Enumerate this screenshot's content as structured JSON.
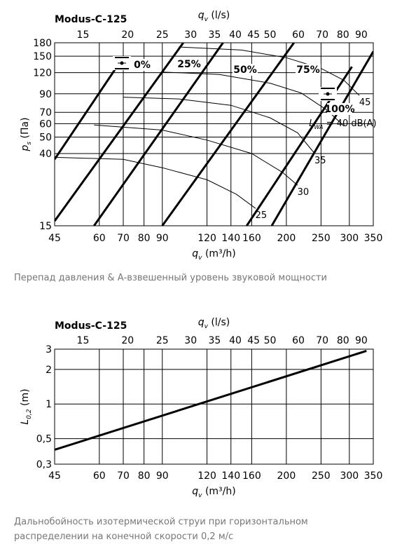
{
  "charts": [
    {
      "title": "Modus-C-125",
      "caption": "Перепад давления & А-взвешенный уровень звуковой мощности",
      "chart_data": {
        "type": "line",
        "x_scale": "log",
        "y_scale": "log",
        "xlim": [
          45,
          350
        ],
        "ylim": [
          15,
          180
        ],
        "top_xlim_ls": [
          12.5,
          97.2
        ],
        "xlabel_pre": "q",
        "xlabel_sub": "v",
        "xlabel_post": " (m³/h)",
        "top_xlabel_pre": "q",
        "top_xlabel_sub": "v",
        "top_xlabel_post": " (l/s)",
        "ylabel_pre": "p",
        "ylabel_sub": "s",
        "ylabel_post": " (Па)",
        "x_ticks": [
          45,
          60,
          70,
          80,
          90,
          120,
          140,
          160,
          200,
          250,
          300,
          350
        ],
        "x_tick_labels": [
          "45",
          "60",
          "70",
          "80",
          "90",
          "120",
          "140",
          "160",
          "200",
          "250",
          "300",
          "350"
        ],
        "top_x_ticks": [
          15,
          20,
          25,
          30,
          35,
          40,
          45,
          50,
          60,
          70,
          80,
          90
        ],
        "top_x_tick_labels": [
          "15",
          "20",
          "25",
          "30",
          "35",
          "40",
          "45",
          "50",
          "60",
          "70",
          "80",
          "90"
        ],
        "y_ticks": [
          15,
          40,
          50,
          60,
          70,
          90,
          120,
          150,
          180
        ],
        "y_tick_labels": [
          "15",
          "40",
          "50",
          "60",
          "70",
          "90",
          "120",
          "150",
          "180"
        ],
        "grid": true,
        "series": [
          {
            "name": "0%",
            "points": [
              [
                45,
                37
              ],
              [
                70,
                148
              ]
            ]
          },
          {
            "name": "25%",
            "points": [
              [
                45,
                16
              ],
              [
                103,
                180
              ]
            ]
          },
          {
            "name": "50%",
            "points": [
              [
                58,
                15
              ],
              [
                133,
                180
              ]
            ]
          },
          {
            "name": "75%",
            "points": [
              [
                90,
                15
              ],
              [
                210,
                180
              ]
            ]
          },
          {
            "name": "100%",
            "points": [
              [
                155,
                15
              ],
              [
                305,
                130
              ]
            ]
          },
          {
            "name": "",
            "points": [
              [
                182,
                15
              ],
              [
                350,
                160
              ]
            ]
          }
        ],
        "sound_curves": [
          {
            "label": "25",
            "points": [
              [
                45,
                38
              ],
              [
                70,
                37
              ],
              [
                90,
                33
              ],
              [
                120,
                28
              ],
              [
                145,
                23
              ],
              [
                164,
                19
              ]
            ]
          },
          {
            "label": "30",
            "points": [
              [
                58,
                59
              ],
              [
                90,
                55
              ],
              [
                120,
                48
              ],
              [
                160,
                40
              ],
              [
                195,
                31
              ],
              [
                215,
                26
              ]
            ]
          },
          {
            "label": "35",
            "points": [
              [
                70,
                86
              ],
              [
                100,
                84
              ],
              [
                140,
                77
              ],
              [
                180,
                65
              ],
              [
                215,
                53
              ],
              [
                240,
                40
              ]
            ]
          },
          {
            "label": "40",
            "points": [
              [
                90,
                121
              ],
              [
                130,
                117
              ],
              [
                180,
                104
              ],
              [
                220,
                91
              ],
              [
                260,
                72
              ],
              [
                290,
                58
              ]
            ]
          },
          {
            "label": "45",
            "points": [
              [
                100,
                170
              ],
              [
                150,
                163
              ],
              [
                200,
                147
              ],
              [
                250,
                127
              ],
              [
                290,
                108
              ],
              [
                320,
                88
              ]
            ]
          }
        ],
        "sound_label_prefix": "L",
        "sound_label_sub": "WA",
        "sound_label_suffix": " = 40 dB(A)",
        "annotations": [
          "0%",
          "25%",
          "50%",
          "75%",
          "100%"
        ]
      }
    },
    {
      "title": "Modus-C-125",
      "caption_lines": [
        "Дальнобойность изотермической струи при горизонтальном",
        "распределении на конечной скорости 0,2 м/с"
      ],
      "chart_data": {
        "type": "line",
        "x_scale": "log",
        "y_scale": "log",
        "xlim": [
          45,
          350
        ],
        "ylim": [
          0.3,
          3
        ],
        "top_xlim_ls": [
          12.5,
          97.2
        ],
        "xlabel_pre": "q",
        "xlabel_sub": "v",
        "xlabel_post": " (m³/h)",
        "top_xlabel_pre": "q",
        "top_xlabel_sub": "v",
        "top_xlabel_post": " (l/s)",
        "ylabel_pre": "L",
        "ylabel_sub": "0,2",
        "ylabel_post": " (m)",
        "x_ticks": [
          45,
          60,
          70,
          80,
          90,
          120,
          140,
          160,
          200,
          250,
          300,
          350
        ],
        "x_tick_labels": [
          "45",
          "60",
          "70",
          "80",
          "90",
          "120",
          "140",
          "160",
          "200",
          "250",
          "300",
          "350"
        ],
        "top_x_ticks": [
          15,
          20,
          25,
          30,
          35,
          40,
          45,
          50,
          60,
          70,
          80,
          90
        ],
        "top_x_tick_labels": [
          "15",
          "20",
          "25",
          "30",
          "35",
          "40",
          "45",
          "50",
          "60",
          "70",
          "80",
          "90"
        ],
        "y_ticks": [
          0.3,
          0.5,
          1,
          2,
          3
        ],
        "y_tick_labels": [
          "0,3",
          "0,5",
          "1",
          "2",
          "3"
        ],
        "grid": true,
        "series": [
          {
            "name": "",
            "points": [
              [
                45,
                0.4
              ],
              [
                335,
                2.9
              ]
            ]
          }
        ]
      }
    }
  ]
}
